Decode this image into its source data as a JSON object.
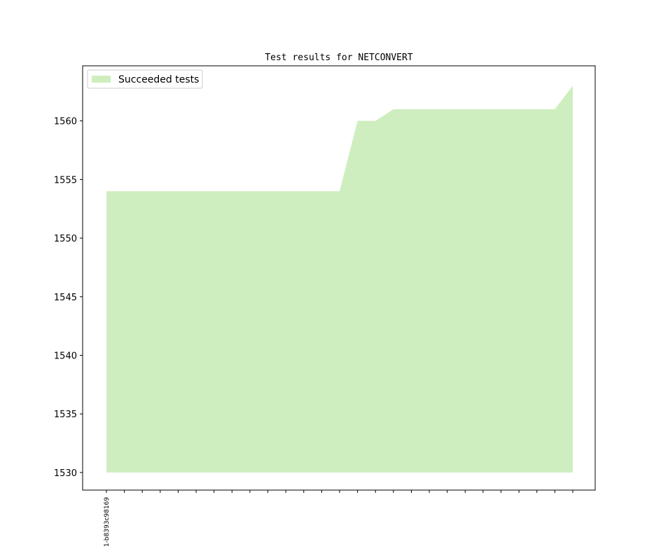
{
  "chart_data": {
    "type": "area",
    "title": "Test results for NETCONVERT",
    "xlabel": "",
    "ylabel": "",
    "x_tick_labels": [
      "1-b8393c98169"
    ],
    "series": [
      {
        "name": "Succeeded tests",
        "color": "#cfeebf",
        "baseline": 1530,
        "values": [
          1554,
          1554,
          1554,
          1554,
          1554,
          1554,
          1554,
          1554,
          1554,
          1554,
          1554,
          1554,
          1554,
          1554,
          1560,
          1560,
          1561,
          1561,
          1561,
          1561,
          1561,
          1561,
          1561,
          1561,
          1561,
          1561,
          1563
        ]
      }
    ],
    "ylim": [
      1528.5,
      1564.7
    ],
    "yticks": [
      1530,
      1535,
      1540,
      1545,
      1550,
      1555,
      1560
    ],
    "grid": false,
    "legend": "top-left"
  }
}
